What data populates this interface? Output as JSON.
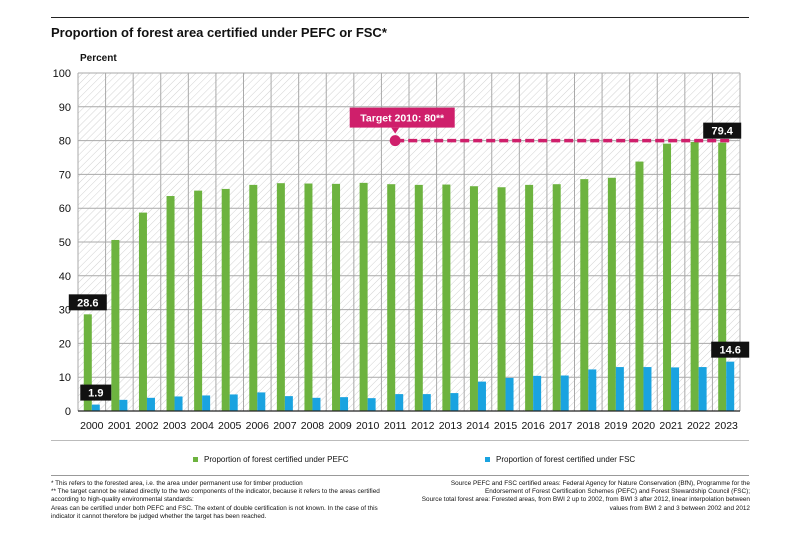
{
  "title": "Proportion of forest area certified under PEFC or FSC*",
  "chart_data": {
    "type": "bar",
    "title": "Proportion of forest area certified under PEFC or FSC*",
    "ylabel": "Percent",
    "xlabel": "",
    "ylim": [
      0,
      100
    ],
    "yticks": [
      0,
      10,
      20,
      30,
      40,
      50,
      60,
      70,
      80,
      90,
      100
    ],
    "grid": true,
    "legend_position": "bottom",
    "categories": [
      "2000",
      "2001",
      "2002",
      "2003",
      "2004",
      "2005",
      "2006",
      "2007",
      "2008",
      "2009",
      "2010",
      "2011",
      "2012",
      "2013",
      "2014",
      "2015",
      "2016",
      "2017",
      "2018",
      "2019",
      "2020",
      "2021",
      "2022",
      "2023"
    ],
    "series": [
      {
        "name": "Proportion of forest certified under PEFC",
        "color": "#6db33f",
        "values": [
          28.6,
          50.6,
          58.7,
          63.6,
          65.2,
          65.7,
          66.9,
          67.4,
          67.3,
          67.2,
          67.5,
          67.1,
          66.9,
          67.0,
          66.5,
          66.2,
          66.9,
          67.1,
          68.6,
          69.0,
          73.8,
          79.1,
          79.6,
          79.4
        ]
      },
      {
        "name": "Proportion of forest certified under FSC",
        "color": "#1aa3e0",
        "values": [
          1.9,
          3.3,
          3.9,
          4.3,
          4.6,
          4.9,
          5.5,
          4.4,
          3.9,
          4.1,
          3.8,
          5.0,
          5.0,
          5.3,
          8.7,
          9.8,
          10.4,
          10.5,
          12.3,
          13.0,
          13.0,
          12.9,
          13.0,
          14.6
        ]
      }
    ],
    "target": {
      "label": "Target 2010: 80**",
      "value": 80,
      "from": "2011",
      "to": "2023",
      "color": "#cf1f6b"
    },
    "annotations": [
      {
        "text": "28.6",
        "series": 0,
        "category": "2000"
      },
      {
        "text": "1.9",
        "series": 1,
        "category": "2000"
      },
      {
        "text": "79.4",
        "series": 0,
        "category": "2023"
      },
      {
        "text": "14.6",
        "series": 1,
        "category": "2023"
      }
    ]
  },
  "legend": {
    "pefc": "Proportion of forest certified under PEFC",
    "fsc": "Proportion of forest certified under FSC"
  },
  "notes": {
    "left_1": "* This refers to the forested area, i.e. the area under permanent use for timber production",
    "left_2": "** The target cannot be related directly to the two components of the indicator, because it refers to the areas certified according to high-quality environmental standards:",
    "left_3": "Areas can be certified under both PEFC and FSC. The extent of double certification is not known. In the case of this indicator it cannot therefore be judged whether the target has been reached.",
    "right_1": "Source PEFC and FSC certified areas: Federal Agency for Nature Conservation (BfN), Programme for the Endorsement of Forest Certification Schemes (PEFC) and Forest Stewardship Council (FSC);",
    "right_2": "Source total forest area: Forested areas, from BWI 2 up to 2002, from BWI 3 after 2012, linear interpolation between values from BWI 2 and 3 between 2002 and 2012"
  }
}
